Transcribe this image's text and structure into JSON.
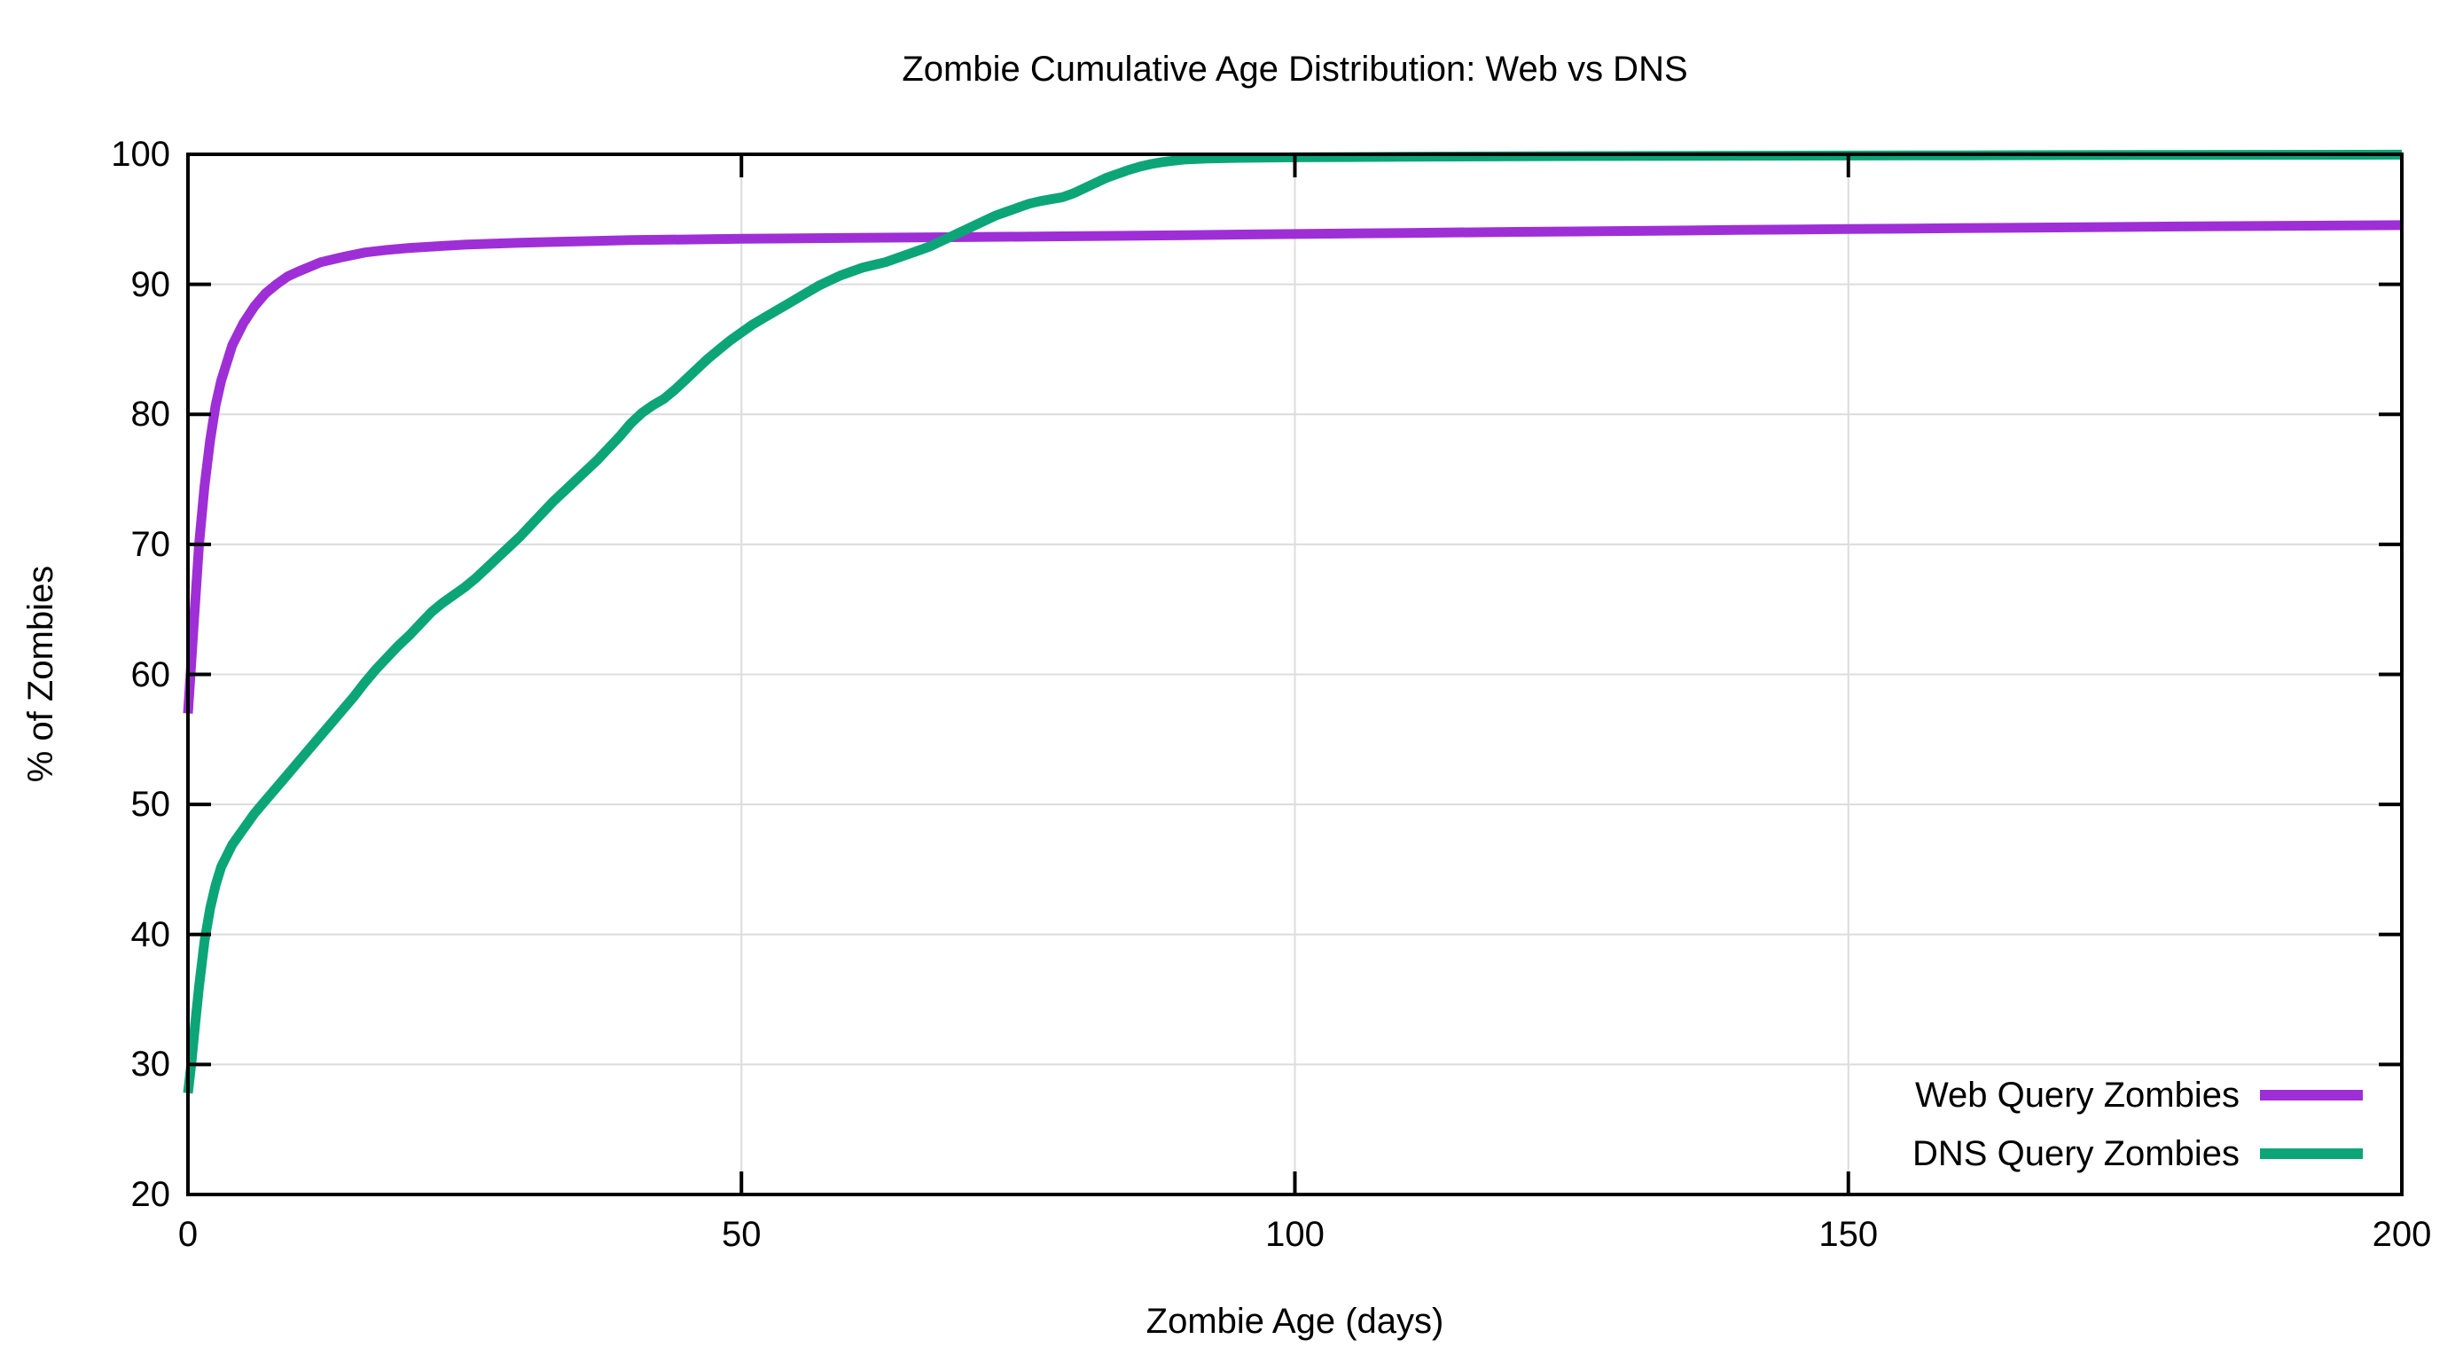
{
  "page": {
    "background": "#ffffff"
  },
  "chart_data": {
    "type": "line",
    "title": "Zombie Cumulative Age Distribution: Web vs DNS",
    "xlabel": "Zombie Age (days)",
    "ylabel": "% of Zombies",
    "xlim": [
      0,
      200
    ],
    "ylim": [
      20,
      100
    ],
    "x_ticks": [
      0,
      50,
      100,
      150,
      200
    ],
    "y_ticks": [
      20,
      30,
      40,
      50,
      60,
      70,
      80,
      90,
      100
    ],
    "grid": true,
    "legend_position": "bottom-right",
    "frame_color": "#000000",
    "grid_color": "#dcdcdc",
    "series": [
      {
        "name": "Web Query Zombies",
        "color": "#9e2fd6",
        "points": [
          [
            0,
            57
          ],
          [
            0.5,
            63.5
          ],
          [
            1,
            70
          ],
          [
            1.5,
            74.5
          ],
          [
            2,
            78
          ],
          [
            2.5,
            80.7
          ],
          [
            3,
            82.6
          ],
          [
            4,
            85.3
          ],
          [
            5,
            87
          ],
          [
            6,
            88.3
          ],
          [
            7,
            89.3
          ],
          [
            8,
            90
          ],
          [
            9,
            90.6
          ],
          [
            10,
            91
          ],
          [
            12,
            91.7
          ],
          [
            14,
            92.1
          ],
          [
            16,
            92.45
          ],
          [
            18,
            92.65
          ],
          [
            20,
            92.8
          ],
          [
            25,
            93.05
          ],
          [
            30,
            93.2
          ],
          [
            35,
            93.3
          ],
          [
            40,
            93.4
          ],
          [
            50,
            93.5
          ],
          [
            60,
            93.57
          ],
          [
            70,
            93.63
          ],
          [
            80,
            93.7
          ],
          [
            90,
            93.78
          ],
          [
            100,
            93.87
          ],
          [
            110,
            93.95
          ],
          [
            120,
            94.03
          ],
          [
            130,
            94.1
          ],
          [
            140,
            94.18
          ],
          [
            150,
            94.25
          ],
          [
            160,
            94.32
          ],
          [
            170,
            94.38
          ],
          [
            180,
            94.45
          ],
          [
            190,
            94.5
          ],
          [
            200,
            94.55
          ]
        ]
      },
      {
        "name": "DNS Query Zombies",
        "color": "#0ca578",
        "points": [
          [
            0,
            27.8
          ],
          [
            0.3,
            30
          ],
          [
            0.7,
            33.5
          ],
          [
            1,
            36
          ],
          [
            1.5,
            39.5
          ],
          [
            2,
            42
          ],
          [
            2.5,
            43.8
          ],
          [
            3,
            45.2
          ],
          [
            4,
            46.9
          ],
          [
            5,
            48.1
          ],
          [
            6,
            49.3
          ],
          [
            7,
            50.3
          ],
          [
            8,
            51.3
          ],
          [
            9,
            52.3
          ],
          [
            10,
            53.3
          ],
          [
            11,
            54.3
          ],
          [
            12,
            55.3
          ],
          [
            13,
            56.3
          ],
          [
            14,
            57.3
          ],
          [
            15,
            58.3
          ],
          [
            16,
            59.4
          ],
          [
            17,
            60.4
          ],
          [
            18,
            61.3
          ],
          [
            19,
            62.2
          ],
          [
            20,
            63
          ],
          [
            21,
            63.9
          ],
          [
            22,
            64.8
          ],
          [
            23,
            65.5
          ],
          [
            24,
            66.1
          ],
          [
            25,
            66.7
          ],
          [
            26,
            67.4
          ],
          [
            27,
            68.2
          ],
          [
            28,
            69
          ],
          [
            29,
            69.8
          ],
          [
            30,
            70.6
          ],
          [
            31,
            71.5
          ],
          [
            32,
            72.4
          ],
          [
            33,
            73.3
          ],
          [
            34,
            74.1
          ],
          [
            35,
            74.9
          ],
          [
            36,
            75.7
          ],
          [
            37,
            76.5
          ],
          [
            38,
            77.4
          ],
          [
            39,
            78.3
          ],
          [
            40,
            79.3
          ],
          [
            41,
            80.1
          ],
          [
            42,
            80.7
          ],
          [
            43,
            81.2
          ],
          [
            44,
            81.9
          ],
          [
            45,
            82.7
          ],
          [
            46,
            83.5
          ],
          [
            47,
            84.3
          ],
          [
            48,
            85
          ],
          [
            49,
            85.7
          ],
          [
            50,
            86.3
          ],
          [
            51,
            86.9
          ],
          [
            52,
            87.4
          ],
          [
            53,
            87.9
          ],
          [
            54,
            88.4
          ],
          [
            55,
            88.9
          ],
          [
            56,
            89.4
          ],
          [
            57,
            89.9
          ],
          [
            58,
            90.3
          ],
          [
            59,
            90.7
          ],
          [
            60,
            91
          ],
          [
            61,
            91.3
          ],
          [
            62,
            91.5
          ],
          [
            63,
            91.7
          ],
          [
            64,
            92
          ],
          [
            65,
            92.3
          ],
          [
            66,
            92.6
          ],
          [
            67,
            92.9
          ],
          [
            68,
            93.3
          ],
          [
            69,
            93.7
          ],
          [
            70,
            94.1
          ],
          [
            71,
            94.5
          ],
          [
            72,
            94.9
          ],
          [
            73,
            95.3
          ],
          [
            74,
            95.6
          ],
          [
            75,
            95.9
          ],
          [
            76,
            96.2
          ],
          [
            77,
            96.4
          ],
          [
            78,
            96.55
          ],
          [
            79,
            96.7
          ],
          [
            80,
            97
          ],
          [
            81,
            97.4
          ],
          [
            82,
            97.8
          ],
          [
            83,
            98.2
          ],
          [
            84,
            98.5
          ],
          [
            85,
            98.8
          ],
          [
            86,
            99.05
          ],
          [
            87,
            99.25
          ],
          [
            88,
            99.4
          ],
          [
            89,
            99.5
          ],
          [
            90,
            99.6
          ],
          [
            92,
            99.68
          ],
          [
            95,
            99.73
          ],
          [
            100,
            99.77
          ],
          [
            110,
            99.81
          ],
          [
            120,
            99.85
          ],
          [
            140,
            99.89
          ],
          [
            160,
            99.92
          ],
          [
            180,
            99.95
          ],
          [
            200,
            99.97
          ]
        ]
      }
    ]
  }
}
